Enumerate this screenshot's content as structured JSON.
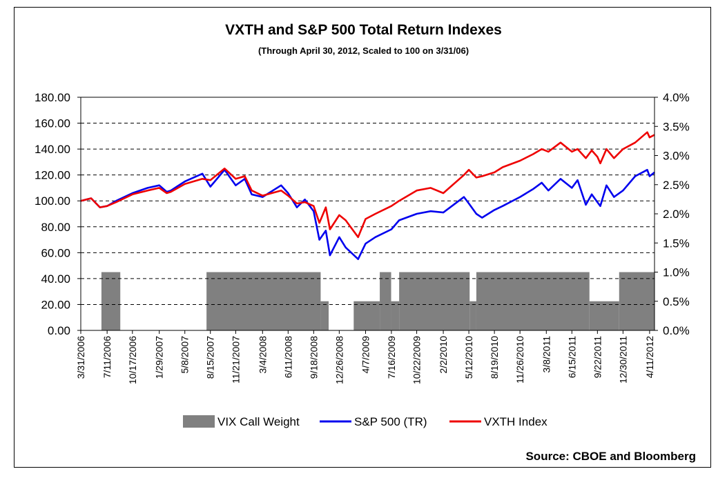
{
  "title": "VXTH and S&P 500 Total Return Indexes",
  "subtitle": "(Through April 30, 2012, Scaled to 100 on 3/31/06)",
  "source": "Source: CBOE and Bloomberg",
  "colors": {
    "vix": "#808080",
    "sp": "#0000ee",
    "vxth": "#ee0000",
    "grid": "#000000"
  },
  "chart_data": {
    "type": "line",
    "x_tick_labels": [
      "3/31/2006",
      "7/11/2006",
      "10/17/2006",
      "1/29/2007",
      "5/8/2007",
      "8/15/2007",
      "11/21/2007",
      "3/4/2008",
      "6/11/2008",
      "9/18/2008",
      "12/26/2008",
      "4/7/2009",
      "7/16/2009",
      "10/22/2009",
      "2/2/2010",
      "5/12/2010",
      "8/19/2010",
      "11/26/2010",
      "3/8/2011",
      "6/15/2011",
      "9/22/2011",
      "12/30/2011",
      "4/11/2012"
    ],
    "y_left": {
      "min": 0,
      "max": 180,
      "step": 20,
      "labels": [
        "0.00",
        "20.00",
        "40.00",
        "60.00",
        "80.00",
        "100.00",
        "120.00",
        "140.00",
        "160.00",
        "180.00"
      ]
    },
    "y_right": {
      "min": 0,
      "max": 4,
      "step": 0.5,
      "labels": [
        "0.0%",
        "0.5%",
        "1.0%",
        "1.5%",
        "2.0%",
        "2.5%",
        "3.0%",
        "3.5%",
        "4.0%"
      ]
    },
    "grid": "horizontal dashed",
    "legend_position": "bottom",
    "series": [
      {
        "name": "VIX Call Weight",
        "kind": "area",
        "axis": "right",
        "unit": "%",
        "segments": [
          {
            "from": "6/19/2006",
            "to": "8/31/2006",
            "value": 1.0
          },
          {
            "from": "7/31/2007",
            "to": "10/15/2008",
            "value": 1.0
          },
          {
            "from": "10/15/2008",
            "to": "11/15/2008",
            "value": 0.5
          },
          {
            "from": "2/20/2009",
            "to": "6/1/2009",
            "value": 0.5
          },
          {
            "from": "6/1/2009",
            "to": "7/15/2009",
            "value": 1.0
          },
          {
            "from": "7/15/2009",
            "to": "8/15/2009",
            "value": 0.5
          },
          {
            "from": "8/15/2009",
            "to": "5/15/2010",
            "value": 1.0
          },
          {
            "from": "5/15/2010",
            "to": "6/10/2010",
            "value": 0.5
          },
          {
            "from": "6/10/2010",
            "to": "8/22/2011",
            "value": 1.0
          },
          {
            "from": "8/22/2011",
            "to": "12/15/2011",
            "value": 0.5
          },
          {
            "from": "12/15/2011",
            "to": "4/30/2012",
            "value": 1.0
          }
        ]
      },
      {
        "name": "S&P 500 (TR)",
        "kind": "line",
        "axis": "left",
        "points": [
          [
            "3/31/2006",
            100
          ],
          [
            "5/10/2006",
            102
          ],
          [
            "6/13/2006",
            95
          ],
          [
            "7/11/2006",
            96
          ],
          [
            "8/15/2006",
            100
          ],
          [
            "10/17/2006",
            106
          ],
          [
            "12/15/2006",
            110
          ],
          [
            "1/29/2007",
            112
          ],
          [
            "2/27/2007",
            107
          ],
          [
            "3/15/2007",
            108
          ],
          [
            "5/8/2007",
            115
          ],
          [
            "7/15/2007",
            121
          ],
          [
            "8/15/2007",
            111
          ],
          [
            "10/9/2007",
            124
          ],
          [
            "11/21/2007",
            112
          ],
          [
            "12/26/2007",
            117
          ],
          [
            "1/22/2008",
            105
          ],
          [
            "3/4/2008",
            103
          ],
          [
            "5/15/2008",
            112
          ],
          [
            "6/11/2008",
            106
          ],
          [
            "7/15/2008",
            95
          ],
          [
            "8/15/2008",
            101
          ],
          [
            "9/18/2008",
            92
          ],
          [
            "10/10/2008",
            70
          ],
          [
            "11/4/2008",
            77
          ],
          [
            "11/20/2008",
            58
          ],
          [
            "12/26/2008",
            72
          ],
          [
            "1/20/2009",
            64
          ],
          [
            "3/9/2009",
            55
          ],
          [
            "4/7/2009",
            67
          ],
          [
            "5/15/2009",
            72
          ],
          [
            "7/16/2009",
            78
          ],
          [
            "8/15/2009",
            85
          ],
          [
            "10/22/2009",
            90
          ],
          [
            "12/15/2009",
            92
          ],
          [
            "2/2/2010",
            91
          ],
          [
            "4/23/2010",
            103
          ],
          [
            "5/12/2010",
            98
          ],
          [
            "6/10/2010",
            90
          ],
          [
            "7/2/2010",
            87
          ],
          [
            "8/19/2010",
            93
          ],
          [
            "9/20/2010",
            96
          ],
          [
            "11/26/2010",
            103
          ],
          [
            "1/15/2011",
            109
          ],
          [
            "2/18/2011",
            114
          ],
          [
            "3/16/2011",
            108
          ],
          [
            "5/2/2011",
            117
          ],
          [
            "6/15/2011",
            110
          ],
          [
            "7/7/2011",
            116
          ],
          [
            "8/8/2011",
            97
          ],
          [
            "8/31/2011",
            105
          ],
          [
            "9/22/2011",
            99
          ],
          [
            "10/3/2011",
            96
          ],
          [
            "10/27/2011",
            112
          ],
          [
            "11/25/2011",
            103
          ],
          [
            "12/30/2011",
            108
          ],
          [
            "2/15/2012",
            119
          ],
          [
            "4/2/2012",
            124
          ],
          [
            "4/11/2012",
            119
          ],
          [
            "4/30/2012",
            122
          ]
        ]
      },
      {
        "name": "VXTH Index",
        "kind": "line",
        "axis": "left",
        "points": [
          [
            "3/31/2006",
            100
          ],
          [
            "5/10/2006",
            102
          ],
          [
            "6/13/2006",
            95
          ],
          [
            "7/11/2006",
            96
          ],
          [
            "8/15/2006",
            99
          ],
          [
            "10/17/2006",
            105
          ],
          [
            "12/15/2006",
            108
          ],
          [
            "1/29/2007",
            110
          ],
          [
            "2/27/2007",
            106
          ],
          [
            "3/15/2007",
            107
          ],
          [
            "5/8/2007",
            113
          ],
          [
            "7/15/2007",
            117
          ],
          [
            "8/15/2007",
            116
          ],
          [
            "10/9/2007",
            125
          ],
          [
            "11/21/2007",
            117
          ],
          [
            "12/26/2007",
            119
          ],
          [
            "1/22/2008",
            108
          ],
          [
            "3/4/2008",
            104
          ],
          [
            "5/15/2008",
            108
          ],
          [
            "6/11/2008",
            104
          ],
          [
            "7/15/2008",
            98
          ],
          [
            "8/15/2008",
            99
          ],
          [
            "9/18/2008",
            96
          ],
          [
            "10/10/2008",
            83
          ],
          [
            "11/4/2008",
            95
          ],
          [
            "11/20/2008",
            78
          ],
          [
            "12/26/2008",
            89
          ],
          [
            "1/20/2009",
            85
          ],
          [
            "3/9/2009",
            72
          ],
          [
            "4/7/2009",
            86
          ],
          [
            "5/15/2009",
            90
          ],
          [
            "7/16/2009",
            96
          ],
          [
            "8/15/2009",
            100
          ],
          [
            "10/22/2009",
            108
          ],
          [
            "12/15/2009",
            110
          ],
          [
            "2/2/2010",
            106
          ],
          [
            "4/23/2010",
            120
          ],
          [
            "5/12/2010",
            124
          ],
          [
            "6/10/2010",
            118
          ],
          [
            "7/2/2010",
            119
          ],
          [
            "8/19/2010",
            122
          ],
          [
            "9/20/2010",
            126
          ],
          [
            "11/26/2010",
            131
          ],
          [
            "1/15/2011",
            136
          ],
          [
            "2/18/2011",
            140
          ],
          [
            "3/16/2011",
            138
          ],
          [
            "5/2/2011",
            145
          ],
          [
            "6/15/2011",
            138
          ],
          [
            "7/7/2011",
            140
          ],
          [
            "8/8/2011",
            133
          ],
          [
            "8/31/2011",
            139
          ],
          [
            "9/22/2011",
            134
          ],
          [
            "10/3/2011",
            129
          ],
          [
            "10/27/2011",
            140
          ],
          [
            "11/25/2011",
            133
          ],
          [
            "12/30/2011",
            140
          ],
          [
            "2/15/2012",
            145
          ],
          [
            "4/2/2012",
            153
          ],
          [
            "4/11/2012",
            149
          ],
          [
            "4/30/2012",
            151
          ]
        ]
      }
    ]
  }
}
